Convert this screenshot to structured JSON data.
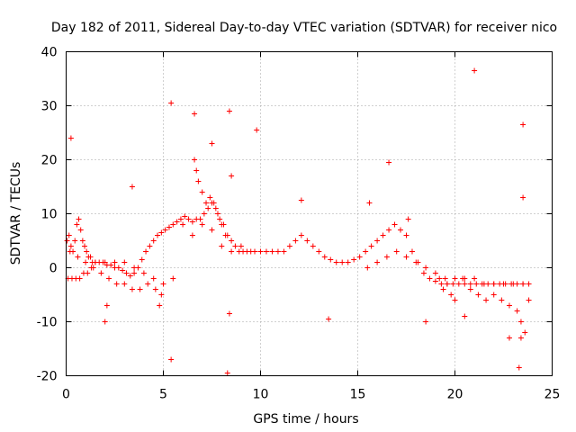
{
  "chart_data": {
    "type": "scatter",
    "title": "Day 182 of 2011, Sidereal Day-to-day VTEC variation (SDTVAR) for receiver nico",
    "xlabel": "GPS time / hours",
    "ylabel": "SDTVAR / TECUs",
    "xlim": [
      0,
      25
    ],
    "ylim": [
      -20,
      40
    ],
    "xticks": [
      0,
      5,
      10,
      15,
      20,
      25
    ],
    "yticks": [
      -20,
      -10,
      0,
      10,
      20,
      30,
      40
    ],
    "grid": true,
    "marker": "+",
    "color": "#ff0000",
    "series": [
      {
        "name": "SDTVAR",
        "x": [
          0.05,
          0.15,
          0.25,
          0.35,
          0.45,
          0.55,
          0.65,
          0.75,
          0.85,
          0.95,
          1.05,
          1.15,
          1.25,
          1.35,
          1.5,
          1.7,
          1.9,
          2.1,
          2.3,
          2.5,
          2.7,
          2.9,
          3.1,
          3.3,
          3.5,
          3.7,
          3.9,
          4.1,
          4.3,
          4.5,
          4.7,
          4.9,
          5.1,
          5.3,
          5.5,
          5.7,
          5.9,
          6.1,
          6.3,
          6.5,
          6.7,
          6.9,
          7.1,
          7.3,
          7.5,
          7.7,
          7.9,
          8.1,
          8.3,
          8.5,
          8.7,
          8.9,
          9.1,
          9.3,
          9.5,
          9.7,
          10.0,
          10.3,
          10.6,
          10.9,
          11.2,
          11.5,
          11.8,
          12.1,
          12.4,
          12.7,
          13.0,
          13.3,
          13.6,
          13.9,
          14.2,
          14.5,
          14.8,
          15.1,
          15.4,
          15.7,
          16.0,
          16.3,
          16.6,
          16.9,
          17.2,
          17.5,
          17.8,
          18.1,
          18.4,
          18.7,
          19.0,
          19.3,
          19.6,
          19.9,
          20.2,
          20.5,
          20.8,
          21.1,
          21.4,
          21.7,
          22.0,
          22.3,
          22.6,
          22.9,
          23.2,
          23.5,
          23.8,
          0.1,
          0.3,
          0.5,
          0.7,
          0.9,
          1.1,
          1.3,
          1.5,
          2.0,
          2.5,
          3.0,
          3.5,
          4.0,
          4.5,
          5.0,
          5.5,
          6.0,
          6.5,
          7.0,
          7.5,
          8.0,
          8.5,
          9.0,
          15.5,
          16.0,
          16.5,
          17.0,
          17.5,
          18.0,
          18.5,
          19.0,
          19.5,
          20.0,
          20.5,
          21.0,
          21.5,
          22.0,
          22.5,
          23.0,
          23.5,
          0.2,
          0.6,
          1.0,
          1.4,
          1.8,
          2.2,
          2.6,
          3.0,
          3.4,
          3.8,
          4.2,
          4.6,
          4.9,
          6.6,
          6.7,
          6.8,
          7.0,
          7.2,
          7.4,
          7.6,
          7.8,
          8.0,
          8.2,
          19.2,
          19.4,
          19.6,
          19.8,
          20.0,
          20.4,
          20.8,
          21.2,
          21.6,
          22.0,
          22.4,
          22.8,
          23.2,
          23.4,
          23.6,
          23.8,
          0.25,
          2.0,
          3.4,
          5.4,
          6.6,
          7.5,
          8.4,
          8.5,
          9.8,
          12.1,
          15.6,
          16.6,
          17.6,
          21.0,
          23.5,
          23.5,
          8.4,
          8.3,
          5.4,
          2.1,
          4.8,
          13.5,
          18.5,
          20.5,
          22.8,
          23.3,
          23.4
        ],
        "y": [
          5,
          6,
          4,
          3,
          5,
          8,
          9,
          7,
          5,
          4,
          3,
          2,
          2,
          1,
          1,
          1,
          1,
          0.5,
          0.5,
          0,
          0,
          -0.5,
          -1,
          -1.5,
          -1,
          0,
          1.5,
          3,
          4,
          5,
          6,
          6.5,
          7,
          7.5,
          8,
          8.5,
          9,
          9.5,
          9,
          8.5,
          9,
          9,
          10,
          11,
          12,
          11,
          9,
          8,
          6,
          5,
          4,
          3,
          3,
          3,
          3,
          3,
          3,
          3,
          3,
          3,
          3,
          4,
          5,
          6,
          5,
          4,
          3,
          2,
          1.5,
          1,
          1,
          1,
          1.5,
          2,
          3,
          4,
          5,
          6,
          7,
          8,
          7,
          6,
          3,
          1,
          -1,
          -2,
          -2.5,
          -3,
          -3,
          -3,
          -3,
          -3,
          -3,
          -3,
          -3,
          -3,
          -3,
          -3,
          -3,
          -3,
          -3,
          -3,
          -3,
          -2,
          -2,
          -2,
          -2,
          -1,
          -1,
          0,
          1,
          1,
          1,
          1,
          0,
          -1,
          -2,
          -3,
          -2,
          8,
          6,
          8,
          7,
          4,
          3,
          4,
          0,
          1,
          2,
          3,
          2,
          1,
          0,
          -1,
          -2,
          -2,
          -2,
          -2,
          -3,
          -3,
          -3,
          -3,
          -3,
          3,
          2,
          1,
          0,
          -1,
          -2,
          -3,
          -3,
          -4,
          -4,
          -3,
          -4,
          -5,
          20,
          18,
          16,
          14,
          12,
          13,
          12,
          10,
          8,
          6,
          -2,
          -4,
          -3,
          -5,
          -6,
          -2,
          -4,
          -5,
          -6,
          -5,
          -6,
          -7,
          -8,
          -10,
          -12,
          -6,
          24,
          -10,
          15,
          30.5,
          28.5,
          23,
          29,
          17,
          25.5,
          12.5,
          12,
          19.5,
          9,
          36.5,
          26.5,
          13,
          -8.5,
          -19.5,
          -17,
          -7,
          -7,
          -9.5,
          -10,
          -9,
          -13,
          -18.5,
          -13
        ]
      }
    ]
  }
}
